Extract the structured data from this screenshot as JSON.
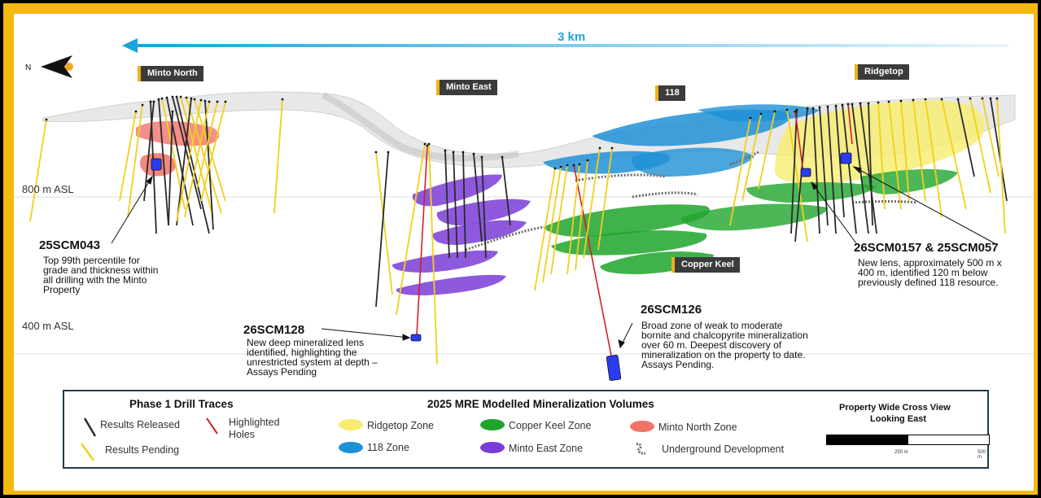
{
  "scale": {
    "label": "3 km"
  },
  "north": {
    "label": "N"
  },
  "zone_labels": {
    "minto_north": "Minto North",
    "minto_east": "Minto East",
    "z118": "118",
    "ridgetop": "Ridgetop",
    "copper_keel": "Copper Keel"
  },
  "elevations": {
    "e800": "800 m ASL",
    "e400": "400 m ASL"
  },
  "holes": {
    "h043": {
      "id": "25SCM043",
      "desc": "Top 99th percentile for grade and thickness within all drilling with the Minto Property"
    },
    "h128": {
      "id": "26SCM128",
      "desc": "New deep mineralized lens identified, highlighting the unrestricted system at depth – Assays Pending"
    },
    "h126": {
      "id": "26SCM126",
      "desc": "Broad zone of weak to moderate bornite and chalcopyrite mineralization over 60 m. Deepest discovery of mineralization on the property to date.  Assays Pending."
    },
    "h0157": {
      "id": "26SCM0157 & 25SCM057",
      "desc": "New lens, approximately 500 m x 400 m, identified 120 m below previously defined 118 resource."
    }
  },
  "legend": {
    "drill_title": "Phase 1 Drill Traces",
    "mre_title": "2025 MRE Modelled Mineralization Volumes",
    "results_released": "Results Released",
    "results_pending": "Results Pending",
    "highlighted_holes": "Highlighted Holes",
    "ridgetop_zone": "Ridgetop Zone",
    "zone_118": "118 Zone",
    "copper_keel_zone": "Copper Keel Zone",
    "minto_east_zone": "Minto East Zone",
    "minto_north_zone": "Minto North Zone",
    "underground": "Underground Development",
    "view_line1": "Property Wide Cross View",
    "view_line2": "Looking East",
    "tick_250": "250 m",
    "tick_500": "500 m"
  },
  "colors": {
    "frame": "#f5b90f",
    "scale_arrow": "#1aa3dc",
    "released": "#2a2a2a",
    "pending": "#f2cf1a",
    "highlighted": "#d21f2a",
    "ridgetop": "#f6ec6e",
    "z118": "#1e90d6",
    "copper_keel": "#1fa52c",
    "minto_east": "#7a3cd6",
    "minto_north": "#f0736a",
    "underground": "#6a6a6a"
  }
}
